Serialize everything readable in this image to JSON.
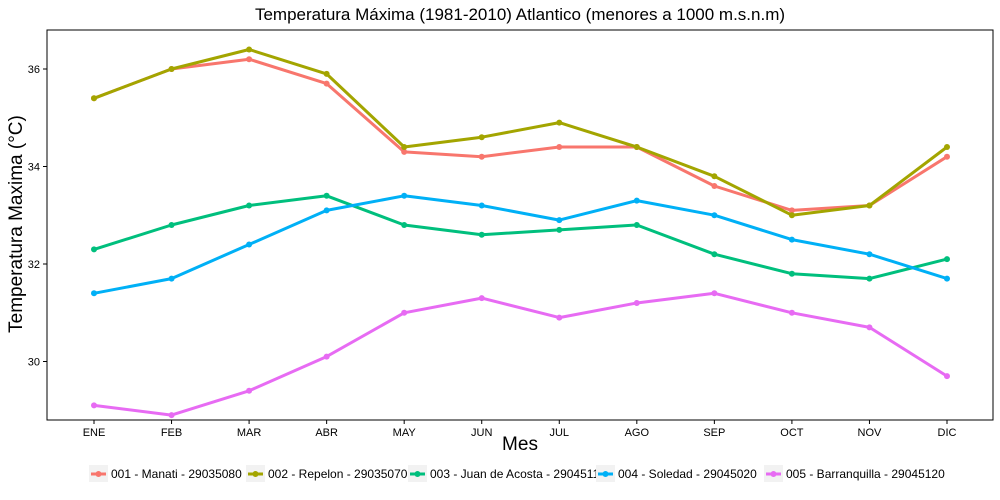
{
  "chart_data": {
    "type": "line",
    "title": "Temperatura Máxima (1981-2010) Atlantico (menores a 1000 m.s.n.m)",
    "xlabel": "Mes",
    "ylabel": "Temperatura Maxima (°C)",
    "categories": [
      "ENE",
      "FEB",
      "MAR",
      "ABR",
      "MAY",
      "JUN",
      "JUL",
      "AGO",
      "SEP",
      "OCT",
      "NOV",
      "DIC"
    ],
    "ylim": [
      28.8,
      36.8
    ],
    "yticks": [
      30,
      32,
      34,
      36
    ],
    "grid": false,
    "legend_position": "bottom",
    "series": [
      {
        "name": "001 - Manati - 29035080",
        "color": "#F8766D",
        "values": [
          35.4,
          36.0,
          36.2,
          35.7,
          34.3,
          34.2,
          34.4,
          34.4,
          33.6,
          33.1,
          33.2,
          34.2
        ]
      },
      {
        "name": "002 - Repelon - 29035070",
        "color": "#A3A500",
        "values": [
          35.4,
          36.0,
          36.4,
          35.9,
          34.4,
          34.6,
          34.9,
          34.4,
          33.8,
          33.0,
          33.2,
          34.4
        ]
      },
      {
        "name": "003 - Juan de Acosta - 29045110",
        "color": "#00BF7D",
        "values": [
          32.3,
          32.8,
          33.2,
          33.4,
          32.8,
          32.6,
          32.7,
          32.8,
          32.2,
          31.8,
          31.7,
          32.1
        ]
      },
      {
        "name": "004 - Soledad - 29045020",
        "color": "#00B0F6",
        "values": [
          31.4,
          31.7,
          32.4,
          33.1,
          33.4,
          33.2,
          32.9,
          33.3,
          33.0,
          32.5,
          32.2,
          31.7
        ]
      },
      {
        "name": "005 - Barranquilla - 29045120",
        "color": "#E76BF3",
        "values": [
          29.1,
          28.9,
          29.4,
          30.1,
          31.0,
          31.3,
          30.9,
          31.2,
          31.4,
          31.0,
          30.7,
          29.7
        ]
      }
    ]
  }
}
